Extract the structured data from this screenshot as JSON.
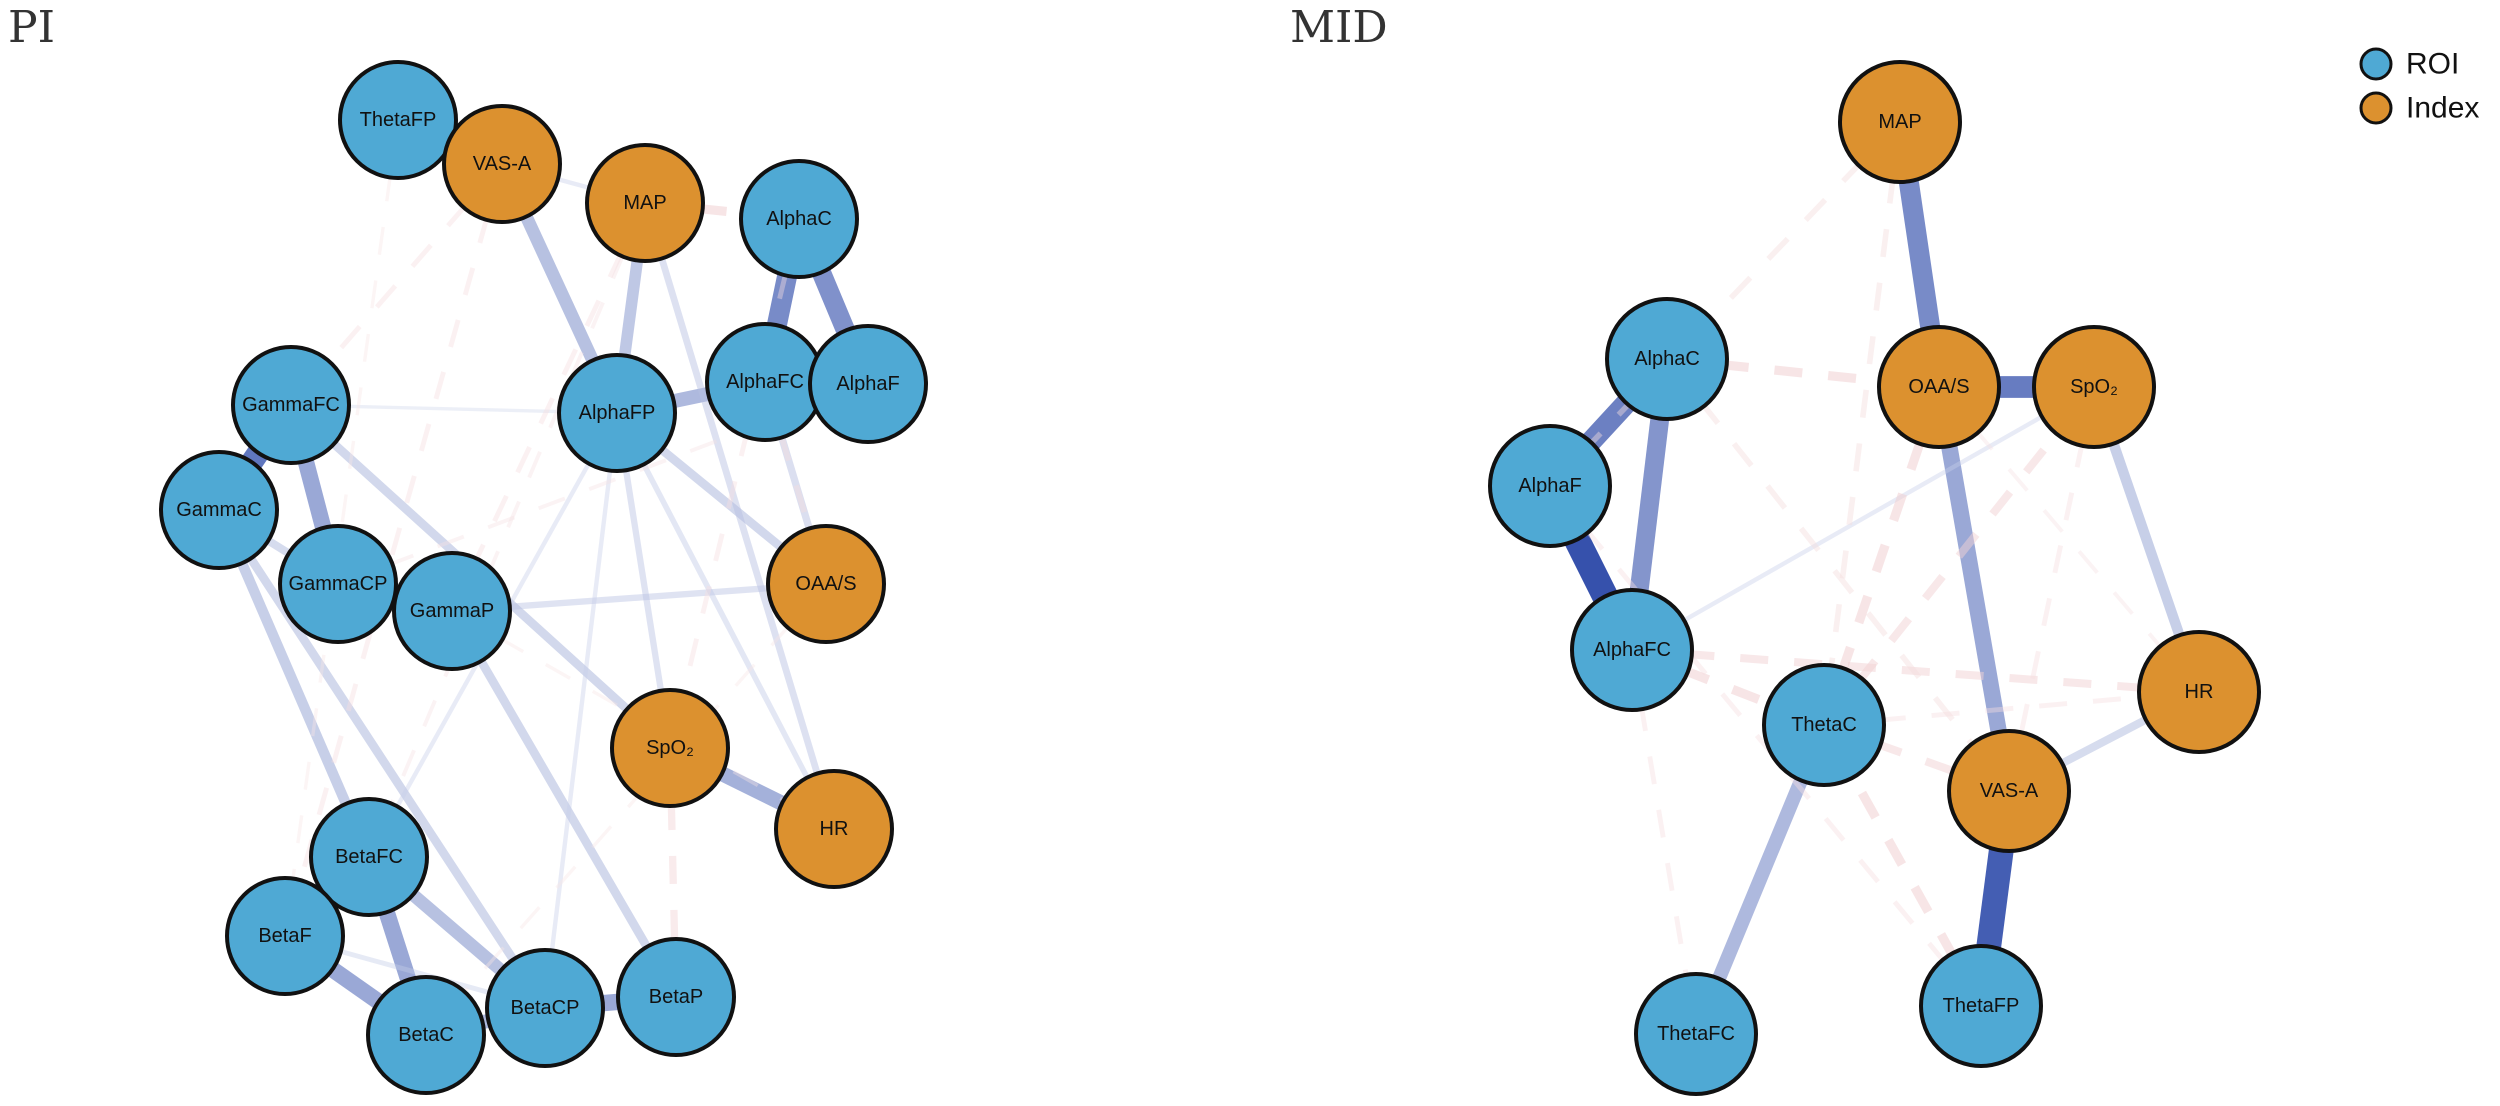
{
  "colors": {
    "roi": "#4fa9d4",
    "index": "#dc912f",
    "positive_edge": "#2b48a8",
    "negative_edge": "#dc8a8f"
  },
  "legend": [
    {
      "label": "ROI",
      "group": "roi"
    },
    {
      "label": "Index",
      "group": "index"
    }
  ],
  "panels": [
    {
      "title": "PI",
      "nodes": [
        {
          "id": "ThetaFP",
          "label": "ThetaFP",
          "group": "roi"
        },
        {
          "id": "VAS-A",
          "label": "VAS-A",
          "group": "index"
        },
        {
          "id": "MAP",
          "label": "MAP",
          "group": "index"
        },
        {
          "id": "AlphaC",
          "label": "AlphaC",
          "group": "roi"
        },
        {
          "id": "AlphaFC",
          "label": "AlphaFC",
          "group": "roi"
        },
        {
          "id": "AlphaF",
          "label": "AlphaF",
          "group": "roi"
        },
        {
          "id": "AlphaFP",
          "label": "AlphaFP",
          "group": "roi"
        },
        {
          "id": "GammaFC",
          "label": "GammaFC",
          "group": "roi"
        },
        {
          "id": "GammaC",
          "label": "GammaC",
          "group": "roi"
        },
        {
          "id": "GammaCP",
          "label": "GammaCP",
          "group": "roi"
        },
        {
          "id": "GammaP",
          "label": "GammaP",
          "group": "roi"
        },
        {
          "id": "OAA/S",
          "label": "OAA/S",
          "group": "index"
        },
        {
          "id": "SpO2",
          "label": "SpO₂",
          "group": "index"
        },
        {
          "id": "HR",
          "label": "HR",
          "group": "index"
        },
        {
          "id": "BetaFC",
          "label": "BetaFC",
          "group": "roi"
        },
        {
          "id": "BetaF",
          "label": "BetaF",
          "group": "roi"
        },
        {
          "id": "BetaC",
          "label": "BetaC",
          "group": "roi"
        },
        {
          "id": "BetaCP",
          "label": "BetaCP",
          "group": "roi"
        },
        {
          "id": "BetaP",
          "label": "BetaP",
          "group": "roi"
        }
      ],
      "edges": [
        {
          "source": "ThetaFP",
          "target": "VAS-A",
          "sign": "positive",
          "weight": 0.75
        },
        {
          "source": "AlphaC",
          "target": "AlphaFC",
          "sign": "positive",
          "weight": 0.75
        },
        {
          "source": "AlphaC",
          "target": "AlphaF",
          "sign": "positive",
          "weight": 0.72
        },
        {
          "source": "AlphaFC",
          "target": "AlphaFP",
          "sign": "positive",
          "weight": 0.5
        },
        {
          "source": "AlphaFP",
          "target": "VAS-A",
          "sign": "positive",
          "weight": 0.45
        },
        {
          "source": "AlphaFP",
          "target": "MAP",
          "sign": "positive",
          "weight": 0.4
        },
        {
          "source": "MAP",
          "target": "AlphaC",
          "sign": "negative",
          "weight": 0.3
        },
        {
          "source": "GammaFC",
          "target": "GammaC",
          "sign": "positive",
          "weight": 0.85
        },
        {
          "source": "GammaFC",
          "target": "GammaCP",
          "sign": "positive",
          "weight": 0.6
        },
        {
          "source": "GammaCP",
          "target": "GammaP",
          "sign": "positive",
          "weight": 0.7
        },
        {
          "source": "GammaC",
          "target": "GammaCP",
          "sign": "positive",
          "weight": 0.25
        },
        {
          "source": "SpO2",
          "target": "HR",
          "sign": "positive",
          "weight": 0.55
        },
        {
          "source": "BetaFC",
          "target": "BetaC",
          "sign": "positive",
          "weight": 0.6
        },
        {
          "source": "BetaF",
          "target": "BetaC",
          "sign": "positive",
          "weight": 0.6
        },
        {
          "source": "BetaC",
          "target": "BetaCP",
          "sign": "positive",
          "weight": 0.5
        },
        {
          "source": "BetaCP",
          "target": "BetaP",
          "sign": "positive",
          "weight": 0.6
        },
        {
          "source": "BetaFC",
          "target": "BetaCP",
          "sign": "positive",
          "weight": 0.45
        },
        {
          "source": "GammaC",
          "target": "BetaFC",
          "sign": "positive",
          "weight": 0.35
        },
        {
          "source": "GammaC",
          "target": "BetaCP",
          "sign": "positive",
          "weight": 0.28
        },
        {
          "source": "GammaFC",
          "target": "SpO2",
          "sign": "positive",
          "weight": 0.28
        },
        {
          "source": "GammaP",
          "target": "BetaP",
          "sign": "positive",
          "weight": 0.28
        },
        {
          "source": "GammaP",
          "target": "OAA/S",
          "sign": "positive",
          "weight": 0.18
        },
        {
          "source": "AlphaFP",
          "target": "OAA/S",
          "sign": "positive",
          "weight": 0.28
        },
        {
          "source": "AlphaFC",
          "target": "OAA/S",
          "sign": "positive",
          "weight": 0.22
        },
        {
          "source": "MAP",
          "target": "HR",
          "sign": "positive",
          "weight": 0.2
        },
        {
          "source": "AlphaFP",
          "target": "SpO2",
          "sign": "positive",
          "weight": 0.18
        },
        {
          "source": "AlphaFP",
          "target": "HR",
          "sign": "positive",
          "weight": 0.15
        },
        {
          "source": "AlphaFP",
          "target": "BetaFC",
          "sign": "positive",
          "weight": 0.1
        },
        {
          "source": "AlphaFP",
          "target": "BetaCP",
          "sign": "positive",
          "weight": 0.1
        },
        {
          "source": "VAS-A",
          "target": "MAP",
          "sign": "positive",
          "weight": 0.1
        },
        {
          "source": "BetaF",
          "target": "BetaCP",
          "sign": "positive",
          "weight": 0.12
        },
        {
          "source": "GammaFC",
          "target": "AlphaFP",
          "sign": "positive",
          "weight": 0.06
        },
        {
          "source": "VAS-A",
          "target": "GammaFC",
          "sign": "negative",
          "weight": 0.12
        },
        {
          "source": "VAS-A",
          "target": "BetaF",
          "sign": "negative",
          "weight": 0.12
        },
        {
          "source": "AlphaFC",
          "target": "OAA/S",
          "sign": "negative",
          "weight": 0.15
        },
        {
          "source": "MAP",
          "target": "GammaP",
          "sign": "negative",
          "weight": 0.12
        },
        {
          "source": "MAP",
          "target": "BetaFC",
          "sign": "negative",
          "weight": 0.08
        },
        {
          "source": "AlphaC",
          "target": "SpO2",
          "sign": "negative",
          "weight": 0.12
        },
        {
          "source": "AlphaF",
          "target": "GammaCP",
          "sign": "negative",
          "weight": 0.08
        },
        {
          "source": "SpO2",
          "target": "BetaP",
          "sign": "negative",
          "weight": 0.22
        },
        {
          "source": "ThetaFP",
          "target": "BetaF",
          "sign": "negative",
          "weight": 0.06
        },
        {
          "source": "GammaP",
          "target": "HR",
          "sign": "negative",
          "weight": 0.06
        },
        {
          "source": "OAA/S",
          "target": "BetaC",
          "sign": "negative",
          "weight": 0.06
        }
      ]
    },
    {
      "title": "MID",
      "nodes": [
        {
          "id": "MAP",
          "label": "MAP",
          "group": "index"
        },
        {
          "id": "AlphaC",
          "label": "AlphaC",
          "group": "roi"
        },
        {
          "id": "OAA/S",
          "label": "OAA/S",
          "group": "index"
        },
        {
          "id": "SpO2",
          "label": "SpO₂",
          "group": "index"
        },
        {
          "id": "AlphaF",
          "label": "AlphaF",
          "group": "roi"
        },
        {
          "id": "AlphaFC",
          "label": "AlphaFC",
          "group": "roi"
        },
        {
          "id": "ThetaC",
          "label": "ThetaC",
          "group": "roi"
        },
        {
          "id": "HR",
          "label": "HR",
          "group": "index"
        },
        {
          "id": "VAS-A",
          "label": "VAS-A",
          "group": "index"
        },
        {
          "id": "ThetaFC",
          "label": "ThetaFC",
          "group": "roi"
        },
        {
          "id": "ThetaFP",
          "label": "ThetaFP",
          "group": "roi"
        }
      ],
      "edges": [
        {
          "source": "MAP",
          "target": "OAA/S",
          "sign": "positive",
          "weight": 0.75
        },
        {
          "source": "OAA/S",
          "target": "SpO2",
          "sign": "positive",
          "weight": 0.82
        },
        {
          "source": "OAA/S",
          "target": "VAS-A",
          "sign": "positive",
          "weight": 0.6
        },
        {
          "source": "VAS-A",
          "target": "ThetaFP",
          "sign": "positive",
          "weight": 0.95
        },
        {
          "source": "AlphaC",
          "target": "AlphaF",
          "sign": "positive",
          "weight": 0.8
        },
        {
          "source": "AlphaC",
          "target": "AlphaFC",
          "sign": "positive",
          "weight": 0.7
        },
        {
          "source": "AlphaF",
          "target": "AlphaFC",
          "sign": "positive",
          "weight": 1.0
        },
        {
          "source": "ThetaC",
          "target": "ThetaFC",
          "sign": "positive",
          "weight": 0.5
        },
        {
          "source": "SpO2",
          "target": "HR",
          "sign": "positive",
          "weight": 0.35
        },
        {
          "source": "VAS-A",
          "target": "HR",
          "sign": "positive",
          "weight": 0.25
        },
        {
          "source": "AlphaFC",
          "target": "SpO2",
          "sign": "positive",
          "weight": 0.1
        },
        {
          "source": "AlphaC",
          "target": "OAA/S",
          "sign": "negative",
          "weight": 0.3
        },
        {
          "source": "AlphaFC",
          "target": "ThetaC",
          "sign": "negative",
          "weight": 0.3
        },
        {
          "source": "ThetaC",
          "target": "OAA/S",
          "sign": "negative",
          "weight": 0.3
        },
        {
          "source": "ThetaC",
          "target": "SpO2",
          "sign": "negative",
          "weight": 0.25
        },
        {
          "source": "ThetaC",
          "target": "VAS-A",
          "sign": "negative",
          "weight": 0.25
        },
        {
          "source": "ThetaC",
          "target": "HR",
          "sign": "negative",
          "weight": 0.12
        },
        {
          "source": "HR",
          "target": "AlphaFC",
          "sign": "negative",
          "weight": 0.25
        },
        {
          "source": "ThetaFP",
          "target": "ThetaC",
          "sign": "negative",
          "weight": 0.3
        },
        {
          "source": "MAP",
          "target": "AlphaF",
          "sign": "negative",
          "weight": 0.15
        },
        {
          "source": "MAP",
          "target": "ThetaC",
          "sign": "negative",
          "weight": 0.15
        },
        {
          "source": "AlphaC",
          "target": "VAS-A",
          "sign": "negative",
          "weight": 0.15
        },
        {
          "source": "AlphaF",
          "target": "ThetaFP",
          "sign": "negative",
          "weight": 0.12
        },
        {
          "source": "AlphaFC",
          "target": "ThetaFC",
          "sign": "negative",
          "weight": 0.12
        },
        {
          "source": "SpO2",
          "target": "VAS-A",
          "sign": "negative",
          "weight": 0.12
        },
        {
          "source": "OAA/S",
          "target": "HR",
          "sign": "negative",
          "weight": 0.08
        }
      ]
    }
  ]
}
